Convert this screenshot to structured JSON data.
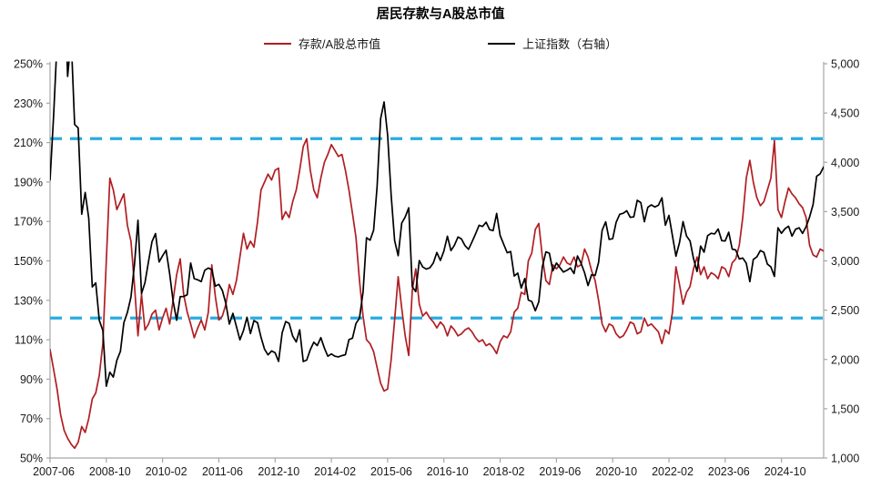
{
  "title": "居民存款与A股总市值",
  "legend": [
    {
      "label": "存款/A股总市值",
      "color": "#b01e23"
    },
    {
      "label": "上证指数（右轴）",
      "color": "#000000"
    }
  ],
  "chart_data": {
    "type": "line",
    "title": "居民存款与A股总市值",
    "x_start": "2007-06",
    "x_end": "2025-10",
    "x_frequency": "monthly",
    "x_tick_labels": [
      "2007-06",
      "2008-10",
      "2010-02",
      "2011-06",
      "2012-10",
      "2014-02",
      "2015-06",
      "2016-10",
      "2018-02",
      "2019-06",
      "2020-10",
      "2022-02",
      "2023-06",
      "2024-10"
    ],
    "x_tick_month_indices": [
      0,
      16,
      32,
      48,
      64,
      80,
      96,
      112,
      128,
      144,
      160,
      176,
      192,
      208
    ],
    "left_axis": {
      "unit": "%",
      "min": 50,
      "max": 250,
      "tick_values": [
        250,
        230,
        210,
        190,
        170,
        150,
        130,
        110,
        90,
        70,
        50
      ],
      "tick_labels": [
        "250%",
        "230%",
        "210%",
        "190%",
        "170%",
        "150%",
        "130%",
        "110%",
        "90%",
        "70%",
        "50%"
      ]
    },
    "right_axis": {
      "min": 1000,
      "max": 5000,
      "tick_values": [
        5000,
        4500,
        4000,
        3500,
        3000,
        2500,
        2000,
        1500,
        1000
      ],
      "tick_labels": [
        "5,000",
        "4,500",
        "4,000",
        "3,500",
        "3,000",
        "2,500",
        "2,000",
        "1,500",
        "1,000"
      ]
    },
    "reference_lines": [
      {
        "axis": "left",
        "value": 212,
        "style": "dashed",
        "color": "#29abe2"
      },
      {
        "axis": "left",
        "value": 121,
        "style": "dashed",
        "color": "#29abe2"
      }
    ],
    "grid": false,
    "legend_position": "top",
    "series": [
      {
        "name": "存款/A股总市值",
        "axis": "left",
        "color": "#b01e23",
        "unit": "%",
        "values": [
          105,
          95,
          85,
          72,
          64,
          60,
          57,
          55,
          58,
          66,
          63,
          70,
          80,
          83,
          92,
          108,
          150,
          192,
          186,
          176,
          180,
          184,
          168,
          160,
          138,
          112,
          133,
          115,
          118,
          123,
          125,
          115,
          121,
          126,
          118,
          130,
          143,
          151,
          133,
          124,
          118,
          111,
          116,
          120,
          115,
          124,
          148,
          132,
          120,
          122,
          128,
          138,
          133,
          140,
          152,
          164,
          156,
          160,
          157,
          170,
          186,
          190,
          194,
          191,
          196,
          197,
          171,
          175,
          172,
          180,
          186,
          196,
          208,
          212,
          196,
          186,
          182,
          192,
          200,
          204,
          209,
          206,
          203,
          204,
          196,
          186,
          174,
          162,
          140,
          122,
          110,
          108,
          104,
          96,
          88,
          84,
          85,
          100,
          120,
          142,
          126,
          112,
          102,
          135,
          146,
          128,
          122,
          124,
          121,
          119,
          116,
          119,
          117,
          112,
          117,
          115,
          112,
          113,
          115,
          116,
          114,
          111,
          109,
          110,
          107,
          108,
          106,
          103,
          109,
          112,
          111,
          114,
          124,
          126,
          134,
          133,
          150,
          154,
          166,
          169,
          152,
          140,
          138,
          148,
          146,
          148,
          152,
          149,
          148,
          152,
          147,
          148,
          156,
          152,
          145,
          140,
          130,
          118,
          114,
          118,
          117,
          113,
          111,
          112,
          115,
          119,
          118,
          113,
          114,
          121,
          117,
          118,
          116,
          114,
          108,
          115,
          113,
          124,
          147,
          138,
          128,
          134,
          137,
          146,
          152,
          143,
          147,
          141,
          144,
          143,
          141,
          147,
          146,
          142,
          149,
          151,
          158,
          172,
          192,
          201,
          190,
          182,
          178,
          180,
          186,
          192,
          211,
          176,
          172,
          180,
          187,
          184,
          182,
          179,
          177,
          172,
          158,
          153,
          152,
          156,
          155
        ]
      },
      {
        "name": "上证指数（右轴）",
        "axis": "right",
        "color": "#000000",
        "unit": "points",
        "values": [
          3821,
          4471,
          5218,
          5552,
          5955,
          4872,
          5262,
          4384,
          4349,
          3473,
          3694,
          3433,
          2736,
          2776,
          2397,
          2294,
          1729,
          1871,
          1821,
          1991,
          2083,
          2373,
          2478,
          2633,
          2959,
          3412,
          2668,
          2779,
          2995,
          3195,
          3277,
          2989,
          3052,
          3109,
          2871,
          2592,
          2398,
          2638,
          2639,
          2656,
          2979,
          2820,
          2808,
          2790,
          2905,
          2928,
          2911,
          2743,
          2762,
          2701,
          2567,
          2359,
          2468,
          2333,
          2199,
          2293,
          2428,
          2263,
          2396,
          2372,
          2225,
          2103,
          2047,
          2086,
          2068,
          1980,
          2269,
          2385,
          2366,
          2237,
          2178,
          2301,
          1979,
          1994,
          2098,
          2175,
          2141,
          2221,
          2116,
          2033,
          2056,
          2033,
          2026,
          2039,
          2048,
          2201,
          2217,
          2364,
          2420,
          2683,
          3235,
          3210,
          3310,
          3748,
          4442,
          4612,
          4277,
          3664,
          3206,
          3053,
          3383,
          3445,
          3539,
          2738,
          2688,
          3004,
          2938,
          2917,
          2930,
          2979,
          3085,
          3005,
          3100,
          3250,
          3104,
          3159,
          3242,
          3223,
          3155,
          3117,
          3192,
          3273,
          3361,
          3349,
          3393,
          3317,
          3307,
          3481,
          3259,
          3169,
          3082,
          3095,
          2847,
          2876,
          2725,
          2821,
          2603,
          2588,
          2494,
          2585,
          2941,
          3091,
          3078,
          2899,
          2979,
          2933,
          2886,
          2905,
          2929,
          2872,
          3050,
          2977,
          2880,
          2750,
          2860,
          2852,
          2985,
          3310,
          3396,
          3218,
          3225,
          3392,
          3473,
          3483,
          3509,
          3442,
          3447,
          3615,
          3591,
          3397,
          3544,
          3568,
          3547,
          3564,
          3640,
          3361,
          3462,
          3252,
          3047,
          3186,
          3399,
          3253,
          3202,
          3024,
          2893,
          3151,
          3089,
          3256,
          3280,
          3273,
          3323,
          3205,
          3202,
          3291,
          3120,
          3110,
          3019,
          3030,
          2975,
          2789,
          3015,
          3041,
          3105,
          3087,
          2967,
          2939,
          2842,
          3336,
          3280,
          3326,
          3352,
          3251,
          3321,
          3336,
          3279,
          3347,
          3444,
          3573,
          3858,
          3883,
          3954
        ]
      }
    ]
  }
}
